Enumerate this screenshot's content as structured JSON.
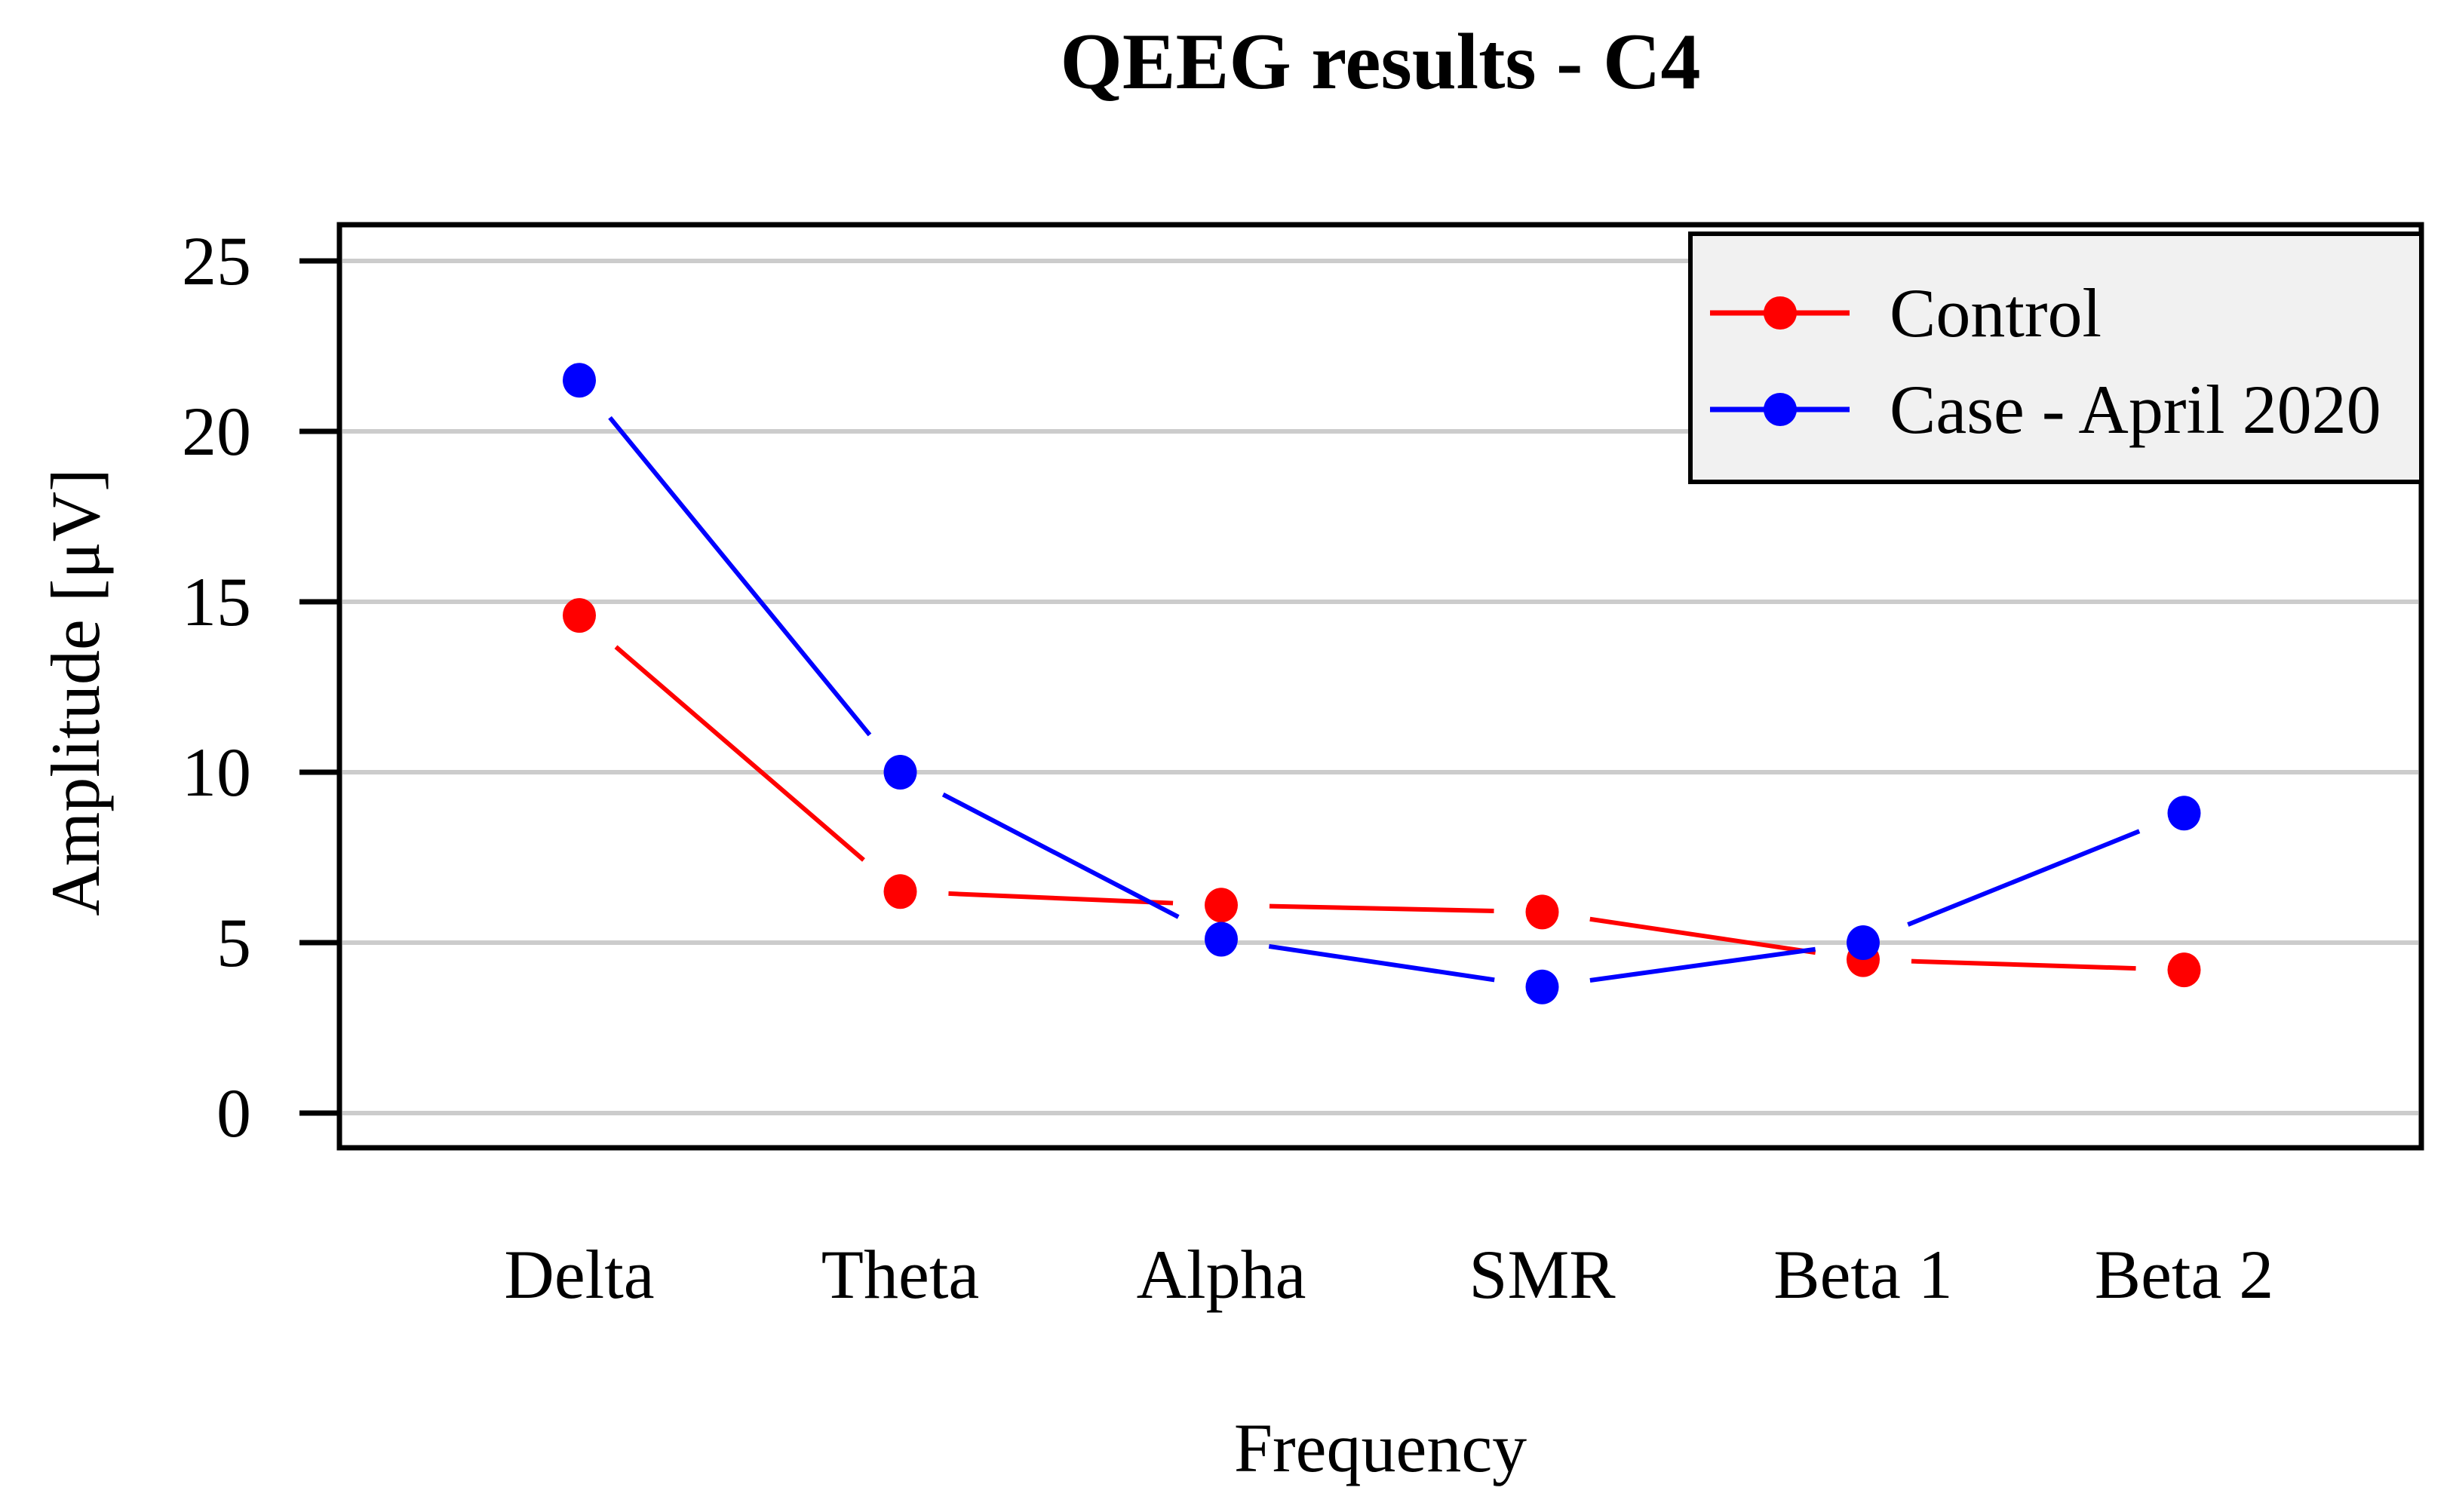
{
  "chart_data": {
    "type": "line",
    "title": "QEEG results - C4",
    "xlabel": "Frequency",
    "ylabel": "Amplitude [μV]",
    "categories": [
      "Delta",
      "Theta",
      "Alpha",
      "SMR",
      "Beta 1",
      "Beta 2"
    ],
    "yticks": [
      0,
      5,
      10,
      15,
      20,
      25
    ],
    "ylim": [
      0,
      25
    ],
    "grid": "horizontal",
    "legend_position": "top-right",
    "series": [
      {
        "name": "Control",
        "color": "#FF0000",
        "values": [
          14.6,
          6.5,
          6.1,
          5.9,
          4.5,
          4.2
        ]
      },
      {
        "name": "Case - April 2020",
        "color": "#0000FF",
        "values": [
          21.5,
          10,
          5.1,
          3.7,
          5.0,
          8.8
        ]
      }
    ],
    "colors": {
      "grid": "#CCCCCC",
      "frame": "#000000",
      "legend_bg": "#F1F1F1",
      "text": "#000000"
    }
  }
}
